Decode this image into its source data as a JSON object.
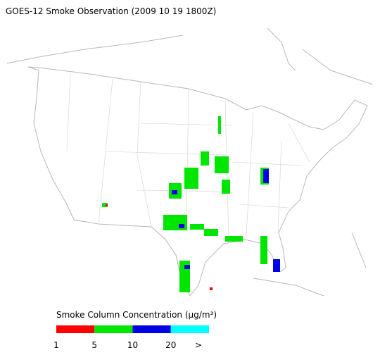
{
  "title": "GOES-12 Smoke Observation (2009 10 19  1800Z)",
  "legend": {
    "title": "Smoke Column Concentration (μg/m³)",
    "colors": [
      "#ff0000",
      "#00e600",
      "#0000e6",
      "#00ffff"
    ],
    "ticks": [
      1,
      5,
      10,
      20
    ],
    "overflow_label": ">"
  }
}
